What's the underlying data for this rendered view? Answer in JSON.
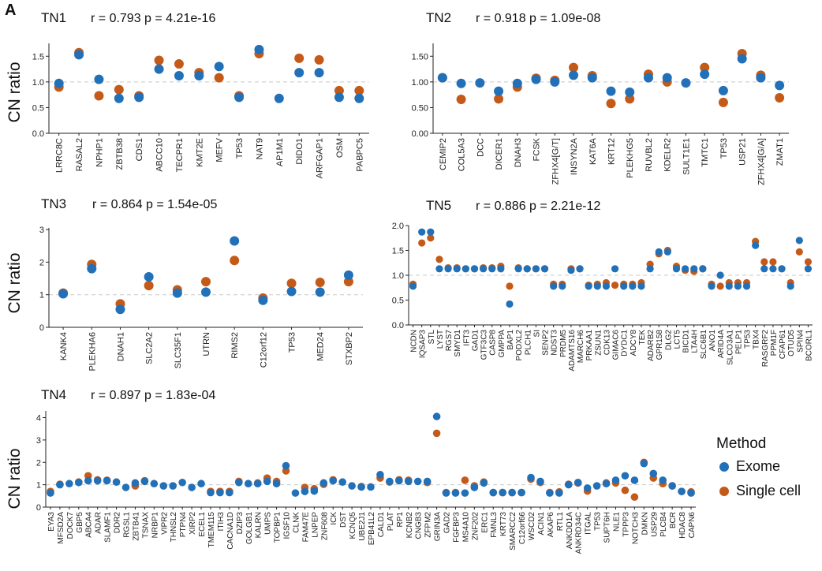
{
  "panel_letter": "A",
  "legend": {
    "title": "Method",
    "items": [
      {
        "label": "Exome",
        "color": "#2170b8"
      },
      {
        "label": "Single cell",
        "color": "#c55a18"
      }
    ]
  },
  "chart_data": [
    {
      "id": "TN1",
      "type": "scatter",
      "title": "TN1",
      "stats": "r = 0.793 p = 4.21e-16",
      "ylabel": "CN ratio",
      "ylim": [
        0,
        1.75
      ],
      "yticks": [
        "0.0",
        "0.5",
        "1.0",
        "1.5"
      ],
      "ytick_values": [
        0,
        0.5,
        1.0,
        1.5
      ],
      "categories": [
        "LRRC8C",
        "RASAL2",
        "NPHP1",
        "ZBTB38",
        "CDS1",
        "ABCC10",
        "TECPR1",
        "KMT2E",
        "MEFV",
        "TP53",
        "NAT9",
        "AP1M1",
        "DIDO1",
        "ARFGAP1",
        "OSM",
        "PABPC5"
      ],
      "series": [
        {
          "name": "Exome",
          "values": [
            0.97,
            1.53,
            1.05,
            0.68,
            0.7,
            1.25,
            1.12,
            1.12,
            1.3,
            0.7,
            1.63,
            0.68,
            1.18,
            1.18,
            0.7,
            0.68
          ]
        },
        {
          "name": "Single cell",
          "values": [
            0.9,
            1.57,
            0.73,
            0.85,
            0.73,
            1.42,
            1.35,
            1.18,
            1.08,
            0.73,
            1.55,
            null,
            1.46,
            1.43,
            0.83,
            0.83
          ]
        }
      ]
    },
    {
      "id": "TN2",
      "type": "scatter",
      "title": "TN2",
      "stats": "r = 0.918 p = 1.09e-08",
      "ylabel": "",
      "ylim": [
        0,
        1.75
      ],
      "yticks": [
        "0.00",
        "0.50",
        "1.00",
        "1.50"
      ],
      "ytick_values": [
        0,
        0.5,
        1.0,
        1.5
      ],
      "categories": [
        "CEMIP2",
        "COL5A3",
        "DCC",
        "DICER1",
        "DNAH3",
        "FCSK",
        "ZFHX4[G/T]",
        "INSYN2A",
        "KAT6A",
        "KRT12",
        "PLEKHG5",
        "RUVBL2",
        "KDELR2",
        "SULT1E1",
        "TMTC1",
        "TP53",
        "USP21",
        "ZFHX4[G/A]",
        "ZMAT1"
      ],
      "series": [
        {
          "name": "Exome",
          "values": [
            1.08,
            0.97,
            0.98,
            0.82,
            0.97,
            1.05,
            1.0,
            1.13,
            1.08,
            0.82,
            0.8,
            1.08,
            1.08,
            0.98,
            1.15,
            0.83,
            1.45,
            1.08,
            0.93
          ]
        },
        {
          "name": "Single cell",
          "values": [
            1.08,
            0.66,
            null,
            0.67,
            0.9,
            1.07,
            1.03,
            1.28,
            1.12,
            0.58,
            0.67,
            1.15,
            1.0,
            null,
            1.28,
            0.6,
            1.55,
            1.13,
            0.69
          ]
        }
      ]
    },
    {
      "id": "TN3",
      "type": "scatter",
      "title": "TN3",
      "stats": "r = 0.864 p = 1.54e-05",
      "ylabel": "CN ratio",
      "ylim": [
        0,
        3.05
      ],
      "yticks": [
        "0",
        "1",
        "2",
        "3"
      ],
      "ytick_values": [
        0,
        1,
        2,
        3
      ],
      "categories": [
        "KANK4",
        "PLEKHA6",
        "DNAH1",
        "SLC2A2",
        "SLC35F1",
        "UTRN",
        "RIMS2",
        "C12orf12",
        "TP53",
        "MED24",
        "STXBP2"
      ],
      "series": [
        {
          "name": "Exome",
          "values": [
            1.03,
            1.8,
            0.55,
            1.55,
            1.05,
            1.08,
            2.65,
            0.83,
            1.1,
            1.08,
            1.6
          ]
        },
        {
          "name": "Single cell",
          "values": [
            1.05,
            1.93,
            0.72,
            1.28,
            1.15,
            1.4,
            2.05,
            0.9,
            1.35,
            1.38,
            1.4
          ]
        }
      ]
    },
    {
      "id": "TN5",
      "type": "scatter",
      "title": "TN5",
      "stats": "r = 0.886 p = 2.21e-12",
      "ylabel": "",
      "ylim": [
        0,
        2.0
      ],
      "yticks": [
        "0.0",
        "0.5",
        "1.0",
        "1.5",
        "2.0"
      ],
      "ytick_values": [
        0,
        0.5,
        1.0,
        1.5,
        2.0
      ],
      "categories": [
        "NCDN",
        "IQSAP3",
        "STL",
        "LYST",
        "RGS7",
        "SMYD1",
        "IFT3",
        "GAD1",
        "GTF3C3",
        "CASP8",
        "GMPPA",
        "BAP1",
        "PODXL2",
        "PLCH1",
        "SI",
        "SENP2",
        "NDST3",
        "PRDM5",
        "ADAMTS16",
        "MARCH6",
        "PRKAA1",
        "ZSUN1",
        "CDK13",
        "GIMAC6",
        "DYDC1",
        "ADCY8",
        "TEK",
        "ADARB2",
        "GPR158",
        "DLG2",
        "LCT5",
        "BICD1",
        "LTA4H",
        "SLC6B1",
        "ANO1",
        "ARID4A",
        "SLCO3A1",
        "PELP1",
        "TP53",
        "TBX4",
        "RASGRF2",
        "PPM1F",
        "CFAP61",
        "OTUD5",
        "SPIN4",
        "BCORL1"
      ],
      "series": [
        {
          "name": "Exome",
          "values": [
            0.78,
            1.87,
            1.87,
            1.13,
            1.13,
            1.13,
            1.13,
            1.13,
            1.13,
            1.13,
            1.13,
            0.42,
            1.13,
            1.13,
            1.13,
            1.13,
            0.78,
            0.78,
            1.1,
            1.13,
            0.78,
            0.78,
            0.78,
            1.13,
            0.78,
            0.78,
            0.78,
            1.13,
            1.47,
            1.47,
            1.13,
            1.13,
            1.13,
            1.13,
            0.78,
            1.0,
            0.78,
            0.78,
            0.78,
            1.6,
            1.13,
            1.13,
            1.13,
            0.78,
            1.7,
            1.13
          ]
        },
        {
          "name": "Single cell",
          "values": [
            0.82,
            1.65,
            1.75,
            1.32,
            1.15,
            1.15,
            1.13,
            1.13,
            1.15,
            1.15,
            1.18,
            0.78,
            1.15,
            1.13,
            1.13,
            1.13,
            0.82,
            0.82,
            1.13,
            1.13,
            0.8,
            0.82,
            0.85,
            0.8,
            0.82,
            0.82,
            0.85,
            1.22,
            1.43,
            1.5,
            1.18,
            1.1,
            1.08,
            1.13,
            0.82,
            0.78,
            0.85,
            0.85,
            0.85,
            1.68,
            1.27,
            1.27,
            1.13,
            0.85,
            1.47,
            1.27
          ]
        }
      ]
    },
    {
      "id": "TN4",
      "type": "scatter",
      "title": "TN4",
      "stats": "r = 0.897 p = 1.83e-04",
      "ylabel": "CN ratio",
      "ylim": [
        0,
        4.3
      ],
      "yticks": [
        "0",
        "1",
        "2",
        "3",
        "4"
      ],
      "ytick_values": [
        0,
        1,
        2,
        3,
        4
      ],
      "categories": [
        "EYA3",
        "MFSD2A",
        "DOCK7",
        "GBP5",
        "ABCA4",
        "ADAR",
        "SLAMF1",
        "DDR2",
        "RGSL1",
        "ZBTB41",
        "TSNAX",
        "NRBP1",
        "VIPR2",
        "THNSL2",
        "PTPN4",
        "XIRP2",
        "ECEL1",
        "TMEM115",
        "ITIH3",
        "CACNA1D",
        "DZIP3",
        "GOLGB1",
        "KALRN",
        "UMPS",
        "TOPBP1",
        "IGSF10",
        "CLNK",
        "FAM47E",
        "LNPEP",
        "ZNF608",
        "ICK",
        "DST",
        "KCNQ5",
        "UBE2J1",
        "EPB41L2",
        "CALD1",
        "PLAT",
        "RP1",
        "KCNB2",
        "CNGB3",
        "ZFPM2",
        "GRIN3A",
        "GAD2",
        "FGFBP3",
        "MS4A10",
        "ZNF202",
        "ERC1",
        "FMNL3",
        "KRT73",
        "SMARCC2",
        "C12orf66",
        "WSCD2",
        "ACIN1",
        "AKAP6",
        "RTL1",
        "ANKDD1A",
        "ANKRD34C",
        "ITGAL",
        "TP53",
        "SUPT6H",
        "NLE1",
        "TPPP3",
        "NOTCH3",
        "DMKN",
        "USP29",
        "PLCB4",
        "BCR",
        "HDAC8",
        "CAPN6"
      ],
      "series": [
        {
          "name": "Exome",
          "values": [
            0.63,
            1.0,
            1.05,
            1.1,
            1.18,
            1.18,
            1.18,
            1.12,
            0.88,
            1.08,
            1.15,
            1.05,
            0.95,
            0.95,
            1.1,
            0.88,
            1.05,
            0.65,
            0.65,
            0.65,
            1.1,
            1.05,
            1.05,
            1.15,
            1.05,
            1.85,
            0.63,
            0.7,
            0.72,
            1.08,
            1.18,
            1.12,
            0.95,
            0.9,
            0.9,
            1.45,
            1.15,
            1.18,
            1.15,
            1.15,
            1.15,
            4.05,
            0.63,
            0.63,
            0.63,
            0.88,
            1.08,
            0.65,
            0.65,
            0.65,
            0.65,
            1.32,
            1.15,
            0.63,
            0.63,
            1.0,
            1.1,
            0.85,
            0.95,
            1.05,
            1.2,
            1.4,
            1.2,
            1.95,
            1.5,
            1.2,
            0.95,
            0.7,
            0.63
          ]
        },
        {
          "name": "Single cell",
          "values": [
            0.7,
            1.02,
            null,
            1.12,
            1.4,
            1.22,
            1.2,
            null,
            null,
            0.95,
            1.18,
            null,
            null,
            null,
            null,
            null,
            null,
            0.7,
            0.7,
            0.7,
            1.15,
            null,
            1.08,
            1.3,
            1.15,
            1.62,
            null,
            0.88,
            0.82,
            1.02,
            1.22,
            null,
            null,
            0.92,
            null,
            1.3,
            1.12,
            1.22,
            1.2,
            null,
            1.1,
            3.3,
            0.65,
            0.65,
            1.2,
            0.95,
            1.12,
            0.65,
            0.65,
            0.65,
            0.65,
            1.25,
            1.1,
            0.65,
            0.68,
            1.02,
            1.08,
            0.72,
            null,
            1.08,
            1.08,
            0.75,
            0.45,
            2.0,
            1.3,
            1.05,
            0.95,
            0.7,
            0.68
          ]
        }
      ]
    }
  ]
}
